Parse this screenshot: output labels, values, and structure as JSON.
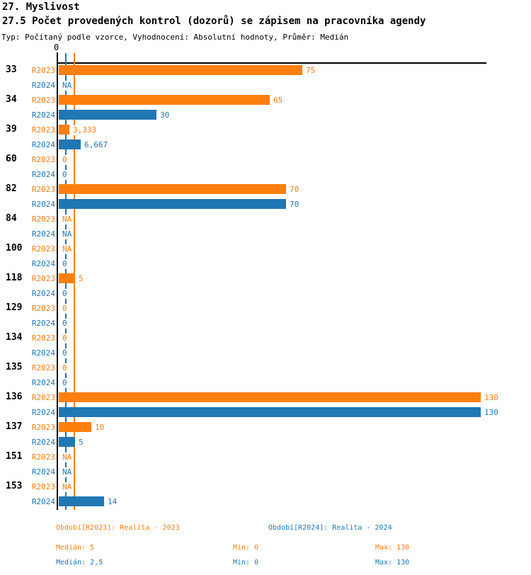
{
  "header": {
    "title": "27. Myslivost",
    "subtitle": "27.5 Počet provedených kontrol (dozorů) se zápisem na pracovníka agendy",
    "meta": "Typ: Počítaný podle vzorce, Vyhodnocení: Absolutní hodnoty, Průměr: Medián"
  },
  "axis": {
    "zero_label": "0"
  },
  "colors": {
    "r2023": "#ff7f0e",
    "r2024": "#1f77b4",
    "axis": "#000000"
  },
  "chart_data": {
    "type": "bar",
    "orientation": "horizontal",
    "xlim": [
      0,
      130
    ],
    "grid": false,
    "categories": [
      "33",
      "34",
      "39",
      "60",
      "82",
      "84",
      "100",
      "118",
      "129",
      "134",
      "135",
      "136",
      "137",
      "151",
      "153"
    ],
    "series": [
      {
        "name": "R2023",
        "color": "#ff7f0e",
        "values": [
          75,
          65,
          3.333,
          0,
          70,
          null,
          null,
          5,
          0,
          0,
          0,
          130,
          10,
          null,
          null
        ],
        "labels": [
          "75",
          "65",
          "3,333",
          "0",
          "70",
          "NA",
          "NA",
          "5",
          "0",
          "0",
          "0",
          "130",
          "10",
          "NA",
          "NA"
        ]
      },
      {
        "name": "R2024",
        "color": "#1f77b4",
        "values": [
          null,
          30,
          6.667,
          0,
          70,
          null,
          0,
          0,
          0,
          0,
          0,
          130,
          5,
          null,
          14
        ],
        "labels": [
          "NA",
          "30",
          "6,667",
          "0",
          "70",
          "NA",
          "0",
          "0",
          "0",
          "0",
          "0",
          "130",
          "5",
          "NA",
          "14"
        ]
      }
    ],
    "median_lines": [
      {
        "series": "R2023",
        "value": 5,
        "color": "#ff7f0e"
      },
      {
        "series": "R2024",
        "value": 2.5,
        "color": "#1f77b4"
      }
    ]
  },
  "legend": {
    "r2023_label": "Období[R2023]: Realita - 2023",
    "r2024_label": "Období[R2024]: Realita - 2024",
    "r2023_stats": {
      "median": "Medián: 5",
      "min": "Min: 0",
      "max": "Max: 130"
    },
    "r2024_stats": {
      "median": "Medián: 2,5",
      "min": "Min: 0",
      "max": "Max: 130"
    }
  }
}
